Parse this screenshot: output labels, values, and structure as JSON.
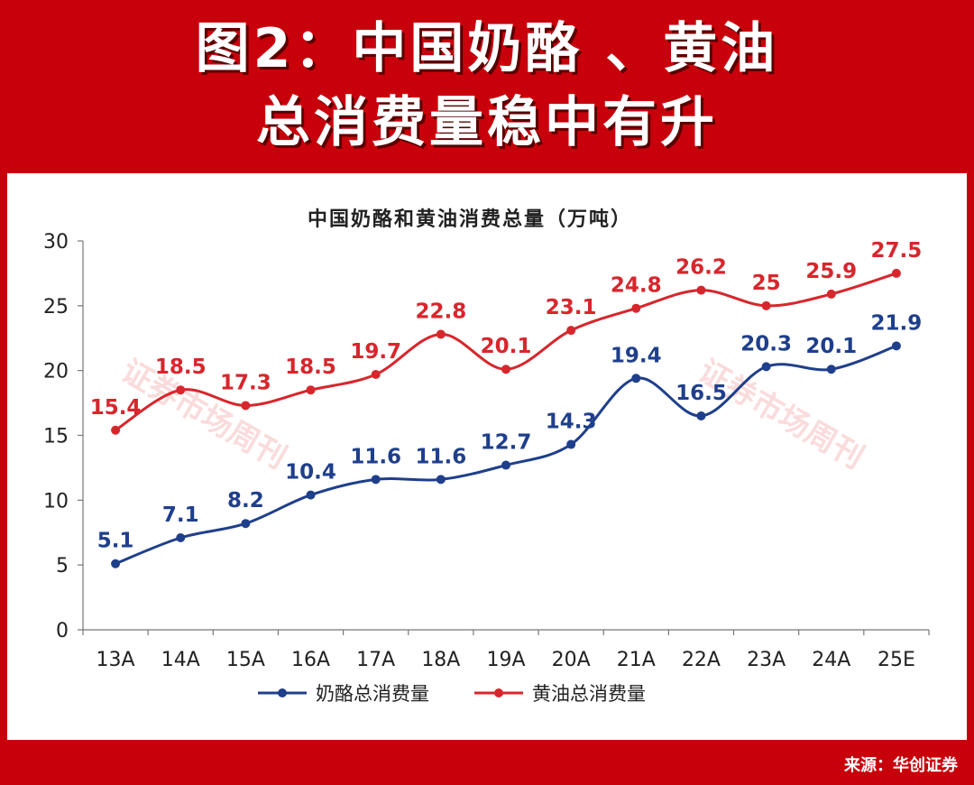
{
  "header": {
    "title_line1": "图2：中国奶酪 、黄油",
    "title_line2": "总消费量稳中有升"
  },
  "footer": {
    "source": "来源：华创证券"
  },
  "watermark": "证券市场周刊",
  "colors": {
    "background": "#c8000b",
    "cheese": "#1f3f8c",
    "butter": "#d7262c"
  },
  "chart_data": {
    "type": "line",
    "title": "中国奶酪和黄油消费总量（万吨）",
    "categories": [
      "13A",
      "14A",
      "15A",
      "16A",
      "17A",
      "18A",
      "19A",
      "20A",
      "21A",
      "22A",
      "23A",
      "24A",
      "25E"
    ],
    "ylim": [
      0,
      30
    ],
    "yticks": [
      0,
      5,
      10,
      15,
      20,
      25,
      30
    ],
    "grid": false,
    "legend_position": "bottom",
    "series": [
      {
        "name": "奶酪总消费量",
        "color": "#1f3f8c",
        "values": [
          5.1,
          7.1,
          8.2,
          10.4,
          11.6,
          11.6,
          12.7,
          14.3,
          19.4,
          16.5,
          20.3,
          20.1,
          21.9
        ],
        "labels": [
          "5.1",
          "7.1",
          "8.2",
          "10.4",
          "11.6",
          "11.6",
          "12.7",
          "14.3",
          "19.4",
          "16.5",
          "20.3",
          "20.1",
          "21.9"
        ]
      },
      {
        "name": "黄油总消费量",
        "color": "#d7262c",
        "values": [
          15.4,
          18.5,
          17.3,
          18.5,
          19.7,
          22.8,
          20.1,
          23.1,
          24.8,
          26.2,
          25,
          25.9,
          27.5
        ],
        "labels": [
          "15.4",
          "18.5",
          "17.3",
          "18.5",
          "19.7",
          "22.8",
          "20.1",
          "23.1",
          "24.8",
          "26.2",
          "25",
          "25.9",
          "27.5"
        ]
      }
    ]
  }
}
